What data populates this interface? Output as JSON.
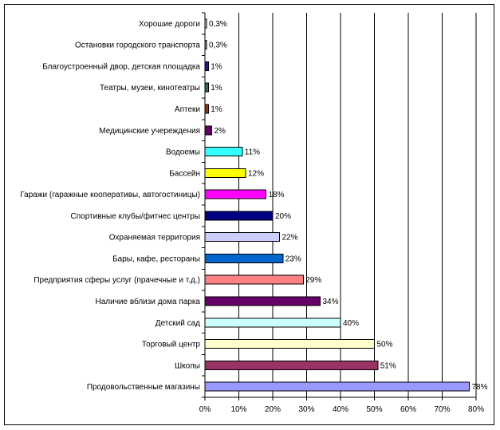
{
  "chart_data": {
    "type": "bar",
    "orientation": "horizontal",
    "title": "",
    "xlabel": "",
    "ylabel": "",
    "xlim": [
      0,
      80
    ],
    "x_ticks": [
      0,
      10,
      20,
      30,
      40,
      50,
      60,
      70,
      80
    ],
    "x_tick_labels": [
      "0%",
      "10%",
      "20%",
      "30%",
      "40%",
      "50%",
      "60%",
      "70%",
      "80%"
    ],
    "grid": "vertical",
    "legend": "none",
    "categories": [
      "Хорошие дороги",
      "Остановки городского транспорта",
      "Благоустроенный двор, детская площадка",
      "Театры, музеи, кинотеатры",
      "Аптеки",
      "Медицинские учереждения",
      "Водоемы",
      "Бассейн",
      "Гаражи (гаражные кооперативы, автогостиницы)",
      "Спортивные клубы/фитнес центры",
      "Охраняемая территория",
      "Бары, кафе, рестораны",
      "Предприятия сферы услуг (прачечные и т.д.)",
      "Наличие вблизи дома парка",
      "Детский сад",
      "Торговый центр",
      "Школы",
      "Продовольственные магазины"
    ],
    "values": [
      0.3,
      0.3,
      1,
      1,
      1,
      2,
      11,
      12,
      18,
      20,
      22,
      23,
      29,
      34,
      40,
      50,
      51,
      78
    ],
    "value_labels": [
      "0,3%",
      "0,3%",
      "1%",
      "1%",
      "1%",
      "2%",
      "11%",
      "12%",
      "18%",
      "20%",
      "22%",
      "23%",
      "29%",
      "34%",
      "40%",
      "50%",
      "51%",
      "78%"
    ],
    "colors": [
      "#d9d9f0",
      "#9999cc",
      "#1a1a99",
      "#336666",
      "#993300",
      "#660066",
      "#33ffff",
      "#ffff00",
      "#ff00ff",
      "#000080",
      "#ccccff",
      "#0066cc",
      "#ff8080",
      "#660066",
      "#ccffff",
      "#ffffcc",
      "#993366",
      "#9999ff"
    ]
  }
}
